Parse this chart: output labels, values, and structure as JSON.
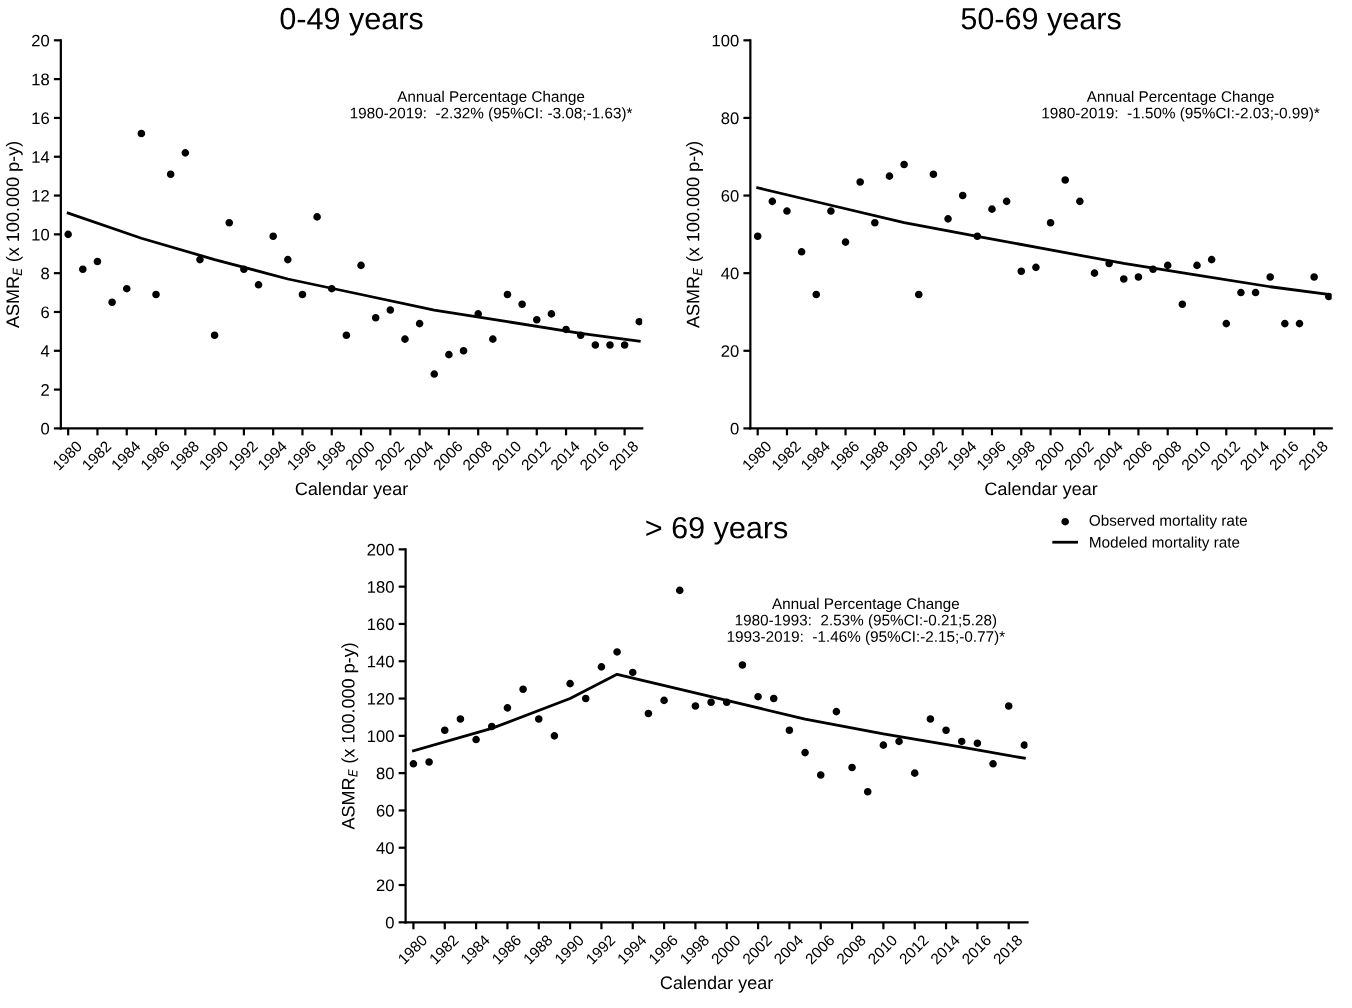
{
  "chart_data": [
    {
      "type": "scatter",
      "title": "0-49 years",
      "xlabel": "Calendar year",
      "ylabel": "ASMR$_{E}$ (x 100.000 p-y)",
      "annotations": [
        "Annual Percentage Change\n1980-2019:  -2.32% (95%CI: -3.08;-1.63)*"
      ],
      "xlim": [
        1979.5,
        2019.2
      ],
      "xticks": [
        1980,
        1982,
        1984,
        1986,
        1988,
        1990,
        1992,
        1994,
        1996,
        1998,
        2000,
        2002,
        2004,
        2006,
        2008,
        2010,
        2012,
        2014,
        2016,
        2018
      ],
      "ylim": [
        0,
        20
      ],
      "yticks": [
        0,
        2,
        4,
        6,
        8,
        10,
        12,
        14,
        16,
        18,
        20
      ],
      "grid": false,
      "legend": false,
      "series": [
        {
          "color": "#000000",
          "marker": "circle",
          "x": [
            1980,
            1981,
            1982,
            1983,
            1984,
            1985,
            1986,
            1987,
            1988,
            1989,
            1990,
            1991,
            1992,
            1993,
            1994,
            1995,
            1996,
            1997,
            1998,
            1999,
            2000,
            2001,
            2002,
            2003,
            2004,
            2005,
            2006,
            2007,
            2008,
            2009,
            2010,
            2011,
            2012,
            2013,
            2014,
            2015,
            2016,
            2017,
            2018,
            2019
          ],
          "values": [
            10.0,
            8.2,
            8.6,
            6.5,
            7.2,
            15.2,
            6.9,
            13.1,
            14.2,
            8.7,
            4.8,
            10.6,
            8.2,
            7.4,
            9.9,
            8.7,
            6.9,
            10.9,
            7.2,
            4.8,
            8.4,
            5.7,
            6.1,
            4.6,
            5.4,
            2.8,
            3.8,
            4.0,
            5.9,
            4.6,
            6.9,
            6.4,
            5.6,
            5.9,
            5.1,
            4.8,
            4.3,
            4.3,
            4.3,
            5.5
          ]
        },
        {
          "type": "line",
          "color": "#000000",
          "x": [
            1980,
            1985,
            1990,
            1995,
            2000,
            2005,
            2010,
            2015,
            2019
          ],
          "values": [
            11.1,
            9.8,
            8.7,
            7.7,
            6.9,
            6.1,
            5.5,
            4.9,
            4.5
          ]
        }
      ]
    },
    {
      "type": "scatter",
      "title": "50-69 years",
      "xlabel": "Calendar year",
      "ylabel": "ASMR$_{E}$ (x 100.000 p-y)",
      "annotations": [
        "Annual Percentage Change\n1980-2019:  -1.50% (95%CI:-2.03;-0.99)*"
      ],
      "xlim": [
        1979.5,
        2019.2
      ],
      "xticks": [
        1980,
        1982,
        1984,
        1986,
        1988,
        1990,
        1992,
        1994,
        1996,
        1998,
        2000,
        2002,
        2004,
        2006,
        2008,
        2010,
        2012,
        2014,
        2016,
        2018
      ],
      "ylim": [
        0,
        100
      ],
      "yticks": [
        0,
        20,
        40,
        60,
        80,
        100
      ],
      "grid": false,
      "legend": false,
      "series": [
        {
          "color": "#000000",
          "marker": "circle",
          "x": [
            1980,
            1981,
            1982,
            1983,
            1984,
            1985,
            1986,
            1987,
            1988,
            1989,
            1990,
            1991,
            1992,
            1993,
            1994,
            1995,
            1996,
            1997,
            1998,
            1999,
            2000,
            2001,
            2002,
            2003,
            2004,
            2005,
            2006,
            2007,
            2008,
            2009,
            2010,
            2011,
            2012,
            2013,
            2014,
            2015,
            2016,
            2017,
            2018,
            2019
          ],
          "values": [
            49.5,
            58.5,
            56,
            45.5,
            34.5,
            56,
            48,
            63.5,
            53,
            65,
            68,
            34.5,
            65.5,
            54,
            60,
            49.5,
            56.5,
            58.5,
            40.5,
            41.5,
            53,
            64,
            58.5,
            40,
            42.5,
            38.5,
            39,
            41,
            42,
            32,
            42,
            43.5,
            27,
            35,
            35,
            39,
            27,
            27,
            39,
            34
          ]
        },
        {
          "type": "line",
          "color": "#000000",
          "x": [
            1980,
            1985,
            1990,
            1995,
            2000,
            2005,
            2010,
            2015,
            2019
          ],
          "values": [
            62,
            57.5,
            53,
            49.5,
            46,
            42.5,
            39.5,
            36.5,
            34.5
          ]
        }
      ]
    },
    {
      "type": "scatter",
      "title": "> 69 years",
      "xlabel": "Calendar year",
      "ylabel": "ASMR$_{E}$ (x 100.000 p-y)",
      "annotations": [
        "Annual Percentage Change\n1980-1993:  2.53% (95%CI:-0.21;5.28)\n1993-2019:  -1.46% (95%CI:-2.15;-0.77)*"
      ],
      "xlim": [
        1979.5,
        2019.2
      ],
      "xticks": [
        1980,
        1982,
        1984,
        1986,
        1988,
        1990,
        1992,
        1994,
        1996,
        1998,
        2000,
        2002,
        2004,
        2006,
        2008,
        2010,
        2012,
        2014,
        2016,
        2018
      ],
      "ylim": [
        0,
        200
      ],
      "yticks": [
        0,
        20,
        40,
        60,
        80,
        100,
        120,
        140,
        160,
        180,
        200
      ],
      "grid": false,
      "legend": "right",
      "series": [
        {
          "name": "Observed mortality rate",
          "color": "#000000",
          "marker": "circle",
          "x": [
            1980,
            1981,
            1982,
            1983,
            1984,
            1985,
            1986,
            1987,
            1988,
            1989,
            1990,
            1991,
            1992,
            1993,
            1994,
            1995,
            1996,
            1997,
            1998,
            1999,
            2000,
            2001,
            2002,
            2003,
            2004,
            2005,
            2006,
            2007,
            2008,
            2009,
            2010,
            2011,
            2012,
            2013,
            2014,
            2015,
            2016,
            2017,
            2018,
            2019
          ],
          "values": [
            85,
            86,
            103,
            109,
            98,
            105,
            115,
            125,
            109,
            100,
            128,
            120,
            137,
            145,
            134,
            112,
            119,
            178,
            116,
            118,
            118,
            138,
            121,
            120,
            103,
            91,
            79,
            113,
            83,
            70,
            95,
            97,
            80,
            109,
            103,
            97,
            96,
            85,
            116,
            95
          ]
        },
        {
          "name": "Modeled mortality rate",
          "type": "line",
          "color": "#000000",
          "x": [
            1980,
            1985,
            1990,
            1993,
            2000,
            2005,
            2010,
            2015,
            2019
          ],
          "values": [
            92,
            104,
            120,
            133,
            119,
            109,
            101,
            94,
            88
          ]
        }
      ]
    }
  ]
}
